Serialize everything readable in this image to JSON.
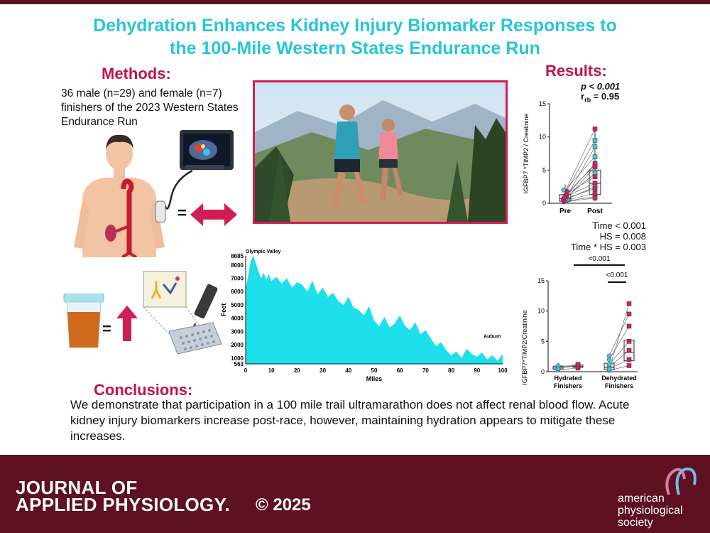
{
  "title": {
    "line1": "Dehydration Enhances Kidney Injury Biomarker Responses to",
    "line2": "the 100-Mile Western States Endurance Run"
  },
  "methods": {
    "heading": "Methods:",
    "text": "36 male (n=29) and female (n=7) finishers of the 2023 Western States Endurance Run",
    "symbols": {
      "equals1": "=",
      "equals2": "="
    }
  },
  "results": {
    "heading": "Results:",
    "p_text": "p < 0.001",
    "r_label": "r",
    "r_sub": "rb",
    "r_value": " = 0.95",
    "stats": [
      "Time < 0.001",
      "HS = 0.008",
      "Time * HS = 0.003"
    ],
    "p_bracket_top": "<0.001",
    "p_bracket_inner": "<0.001"
  },
  "chart_data": [
    {
      "type": "area",
      "title": "",
      "xlabel": "Miles",
      "ylabel": "Feet",
      "x_ticks": [
        0,
        10,
        20,
        30,
        40,
        50,
        60,
        70,
        80,
        90,
        100
      ],
      "y_ticks": [
        563,
        1000,
        2000,
        3000,
        4000,
        5000,
        6000,
        7000,
        8000,
        8685
      ],
      "xlim": [
        0,
        100
      ],
      "ylim": [
        563,
        8685
      ],
      "annotations": [
        "Olympic Valley",
        "Auburn"
      ],
      "x": [
        0,
        1,
        2,
        3,
        4,
        5,
        6,
        7,
        8,
        9,
        10,
        12,
        14,
        16,
        18,
        20,
        22,
        24,
        26,
        28,
        30,
        32,
        34,
        36,
        38,
        40,
        42,
        44,
        46,
        48,
        50,
        52,
        54,
        56,
        58,
        60,
        62,
        64,
        66,
        68,
        70,
        72,
        74,
        76,
        78,
        80,
        82,
        84,
        86,
        88,
        90,
        92,
        94,
        96,
        98,
        100
      ],
      "y": [
        6200,
        7200,
        8300,
        8685,
        8100,
        7500,
        7000,
        7400,
        6900,
        7300,
        6800,
        7100,
        6600,
        7000,
        6300,
        6700,
        6500,
        6000,
        6800,
        5800,
        6300,
        5600,
        5900,
        5300,
        5000,
        5600,
        4800,
        4600,
        4200,
        4900,
        3800,
        3400,
        4100,
        3300,
        3600,
        4200,
        3400,
        3100,
        3700,
        2800,
        3100,
        2500,
        1900,
        2200,
        1600,
        1200,
        1500,
        1000,
        1700,
        1300,
        1100,
        1400,
        900,
        1200,
        800,
        1300
      ],
      "color": "#1de0ec"
    },
    {
      "type": "scatter",
      "title": "",
      "ylabel": "IGFBP7 *TIMP2 / Creatinine",
      "categories": [
        "Pre",
        "Post"
      ],
      "ylim": [
        0,
        15
      ],
      "y_ticks": [
        0,
        5,
        10,
        15
      ],
      "series": [
        {
          "name": "Hydrated",
          "color": "#3cc8e0",
          "pre": [
            0.3,
            0.5,
            0.8,
            1.2,
            2.0,
            0.6,
            1.5
          ],
          "post": [
            1.0,
            2.5,
            4.5,
            5.8,
            7.0,
            8.5,
            9.5
          ]
        },
        {
          "name": "Dehydrated",
          "color": "#d0216a",
          "pre": [
            0.2,
            0.4,
            0.7,
            1.0,
            1.3,
            0.5,
            0.9,
            1.8
          ],
          "post": [
            0.8,
            1.5,
            2.2,
            3.0,
            4.0,
            5.5,
            6.0,
            11.2
          ]
        }
      ],
      "box_pre": {
        "q1": 0.3,
        "median": 0.7,
        "q3": 1.3,
        "min": 0.1,
        "max": 2.8
      },
      "box_post": {
        "q1": 1.3,
        "median": 3.0,
        "q3": 5.0,
        "min": 0.3,
        "max": 11.2
      }
    },
    {
      "type": "scatter",
      "title": "",
      "ylabel": "IGFBP7*TIMP2/Creatinine",
      "categories": [
        "Hydrated Finishers",
        "Dehydrated Finishers"
      ],
      "category_lines": [
        [
          "Hydrated",
          "Finishers"
        ],
        [
          "Dehydrated",
          "Finishers"
        ]
      ],
      "ylim": [
        0,
        15
      ],
      "y_ticks": [
        0,
        5,
        10,
        15
      ],
      "groups": [
        {
          "pre": [
            0.3,
            0.6,
            0.8,
            1.0,
            0.5
          ],
          "post": [
            0.6,
            0.9,
            1.1,
            0.8,
            1.2
          ],
          "box_pre": {
            "q1": 0.4,
            "median": 0.6,
            "q3": 0.9
          },
          "box_post": {
            "q1": 0.7,
            "median": 0.9,
            "q3": 1.1
          }
        },
        {
          "pre": [
            0.2,
            0.5,
            0.8,
            1.2,
            2.0,
            2.6,
            0.4
          ],
          "post": [
            1.0,
            2.0,
            3.5,
            5.0,
            7.5,
            9.5,
            11.2
          ],
          "box_pre": {
            "q1": 0.3,
            "median": 0.7,
            "q3": 1.4
          },
          "box_post": {
            "q1": 1.8,
            "median": 3.2,
            "q3": 5.2
          }
        }
      ]
    }
  ],
  "elevation_labels": {
    "start": "Olympic Valley",
    "end": "Auburn"
  },
  "conclusions": {
    "heading": "Conclusions:",
    "text": "We demonstrate that participation in a 100 mile trail ultramarathon does not affect renal blood flow. Acute kidney injury biomarkers increase post-race, however, maintaining hydration appears to mitigate these increases."
  },
  "footer": {
    "journal_line1": "JOURNAL OF",
    "journal_line2": "APPLIED PHYSIOLOGY.",
    "copyright": "© 2025",
    "society_line1": "american",
    "society_line2": "physiological",
    "society_line3": "society"
  },
  "colors": {
    "title": "#26c6d8",
    "heading": "#c0144a",
    "footer": "#5e1120",
    "teal": "#1de0ec",
    "magenta": "#d0216a"
  }
}
